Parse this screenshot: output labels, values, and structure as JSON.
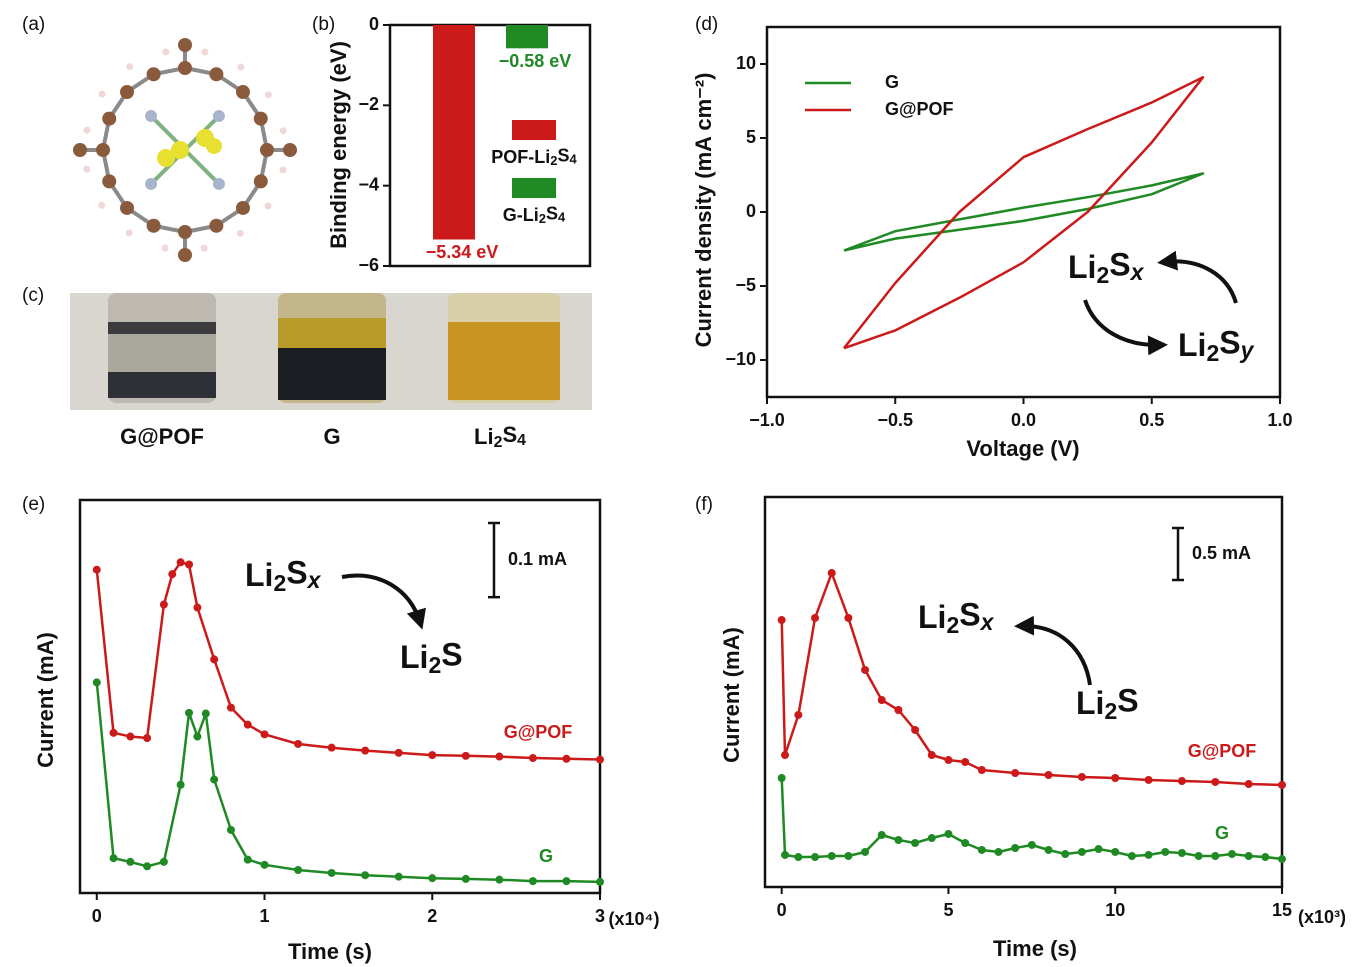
{
  "panel_labels": [
    "(a)",
    "(b)",
    "(c)",
    "(d)",
    "(e)",
    "(f)"
  ],
  "photo_labels": [
    "G@POF",
    "G",
    "Li2S4"
  ],
  "chart_data": [
    {
      "type": "bar",
      "y_label": "Binding energy (eV)",
      "ylim": [
        -6,
        0
      ],
      "yticks": [
        0,
        {
          "value": -2,
          "label": "−2"
        },
        {
          "value": -4,
          "label": "−4"
        },
        {
          "value": -6,
          "label": "−6"
        }
      ],
      "series": [
        {
          "name": "POF-Li2S4",
          "color": "#cc1a1a",
          "values": [
            -5.34
          ],
          "value_labels": [
            "−5.34 eV"
          ]
        },
        {
          "name": "G-Li2S4",
          "color": "#1f8a24",
          "values": [
            -0.58
          ],
          "value_labels": [
            "−0.58 eV"
          ]
        }
      ]
    },
    {
      "type": "line",
      "x_label": "Voltage (V)",
      "y_label": "Current density (mA cm⁻²)",
      "legend": "upper left",
      "xlim": [
        -1,
        1
      ],
      "xticks": [
        {
          "value": -1,
          "label": "−1.0"
        },
        {
          "value": -0.5,
          "label": "−0.5"
        },
        {
          "value": 0,
          "label": "0.0"
        },
        {
          "value": 0.5,
          "label": "0.5"
        },
        {
          "value": 1,
          "label": "1.0"
        }
      ],
      "ylim": [
        -12.5,
        12.5
      ],
      "yticks": [
        {
          "value": -10,
          "label": "−10"
        },
        {
          "value": -5,
          "label": "−5"
        },
        0,
        5,
        10
      ],
      "annotations": [
        "Li2Sx",
        "Li2Sy"
      ],
      "series": [
        {
          "name": "G",
          "color": "#1f8a24",
          "x": [
            -0.7,
            -0.5,
            -0.25,
            0,
            0.25,
            0.5,
            0.7,
            0.5,
            0.25,
            0,
            -0.25,
            -0.5,
            -0.7
          ],
          "values": [
            -2.6,
            -1.8,
            -1.2,
            -0.6,
            0.2,
            1.2,
            2.6,
            1.8,
            1.0,
            0.3,
            -0.5,
            -1.3,
            -2.6
          ]
        },
        {
          "name": "G@POF",
          "color": "#cc1a1a",
          "x": [
            -0.7,
            -0.5,
            -0.25,
            0,
            0.25,
            0.5,
            0.7,
            0.5,
            0.25,
            0,
            -0.25,
            -0.5,
            -0.7
          ],
          "values": [
            -9.2,
            -8.0,
            -5.8,
            -3.4,
            0,
            4.7,
            9.1,
            7.4,
            5.6,
            3.7,
            0,
            -4.8,
            -9.2
          ]
        }
      ]
    },
    {
      "type": "line",
      "x_label": "Time (s)",
      "y_label": "Current (mA)",
      "x_unit_label": "(x10⁴)",
      "markers": true,
      "xlim": [
        -0.1,
        3
      ],
      "xticks": [
        0,
        1,
        2,
        3
      ],
      "ylim": [
        0,
        0.53
      ],
      "scale_bar": 0.1,
      "scale_bar_label": "0.1 mA",
      "annotations": [
        "Li2Sx",
        "Li2S"
      ],
      "series": [
        {
          "name": "G@POF",
          "color": "#cc1a1a",
          "x": [
            0,
            0.1,
            0.2,
            0.3,
            0.4,
            0.45,
            0.5,
            0.55,
            0.6,
            0.7,
            0.8,
            0.9,
            1.0,
            1.2,
            1.4,
            1.6,
            1.8,
            2.0,
            2.2,
            2.4,
            2.6,
            2.8,
            3.0
          ],
          "values": [
            0.436,
            0.216,
            0.211,
            0.209,
            0.389,
            0.43,
            0.446,
            0.443,
            0.385,
            0.315,
            0.25,
            0.227,
            0.214,
            0.201,
            0.196,
            0.192,
            0.189,
            0.186,
            0.185,
            0.184,
            0.182,
            0.181,
            0.18
          ]
        },
        {
          "name": "G",
          "color": "#1f8a24",
          "x": [
            0,
            0.1,
            0.2,
            0.3,
            0.4,
            0.5,
            0.55,
            0.6,
            0.65,
            0.7,
            0.8,
            0.9,
            1.0,
            1.2,
            1.4,
            1.6,
            1.8,
            2.0,
            2.2,
            2.4,
            2.6,
            2.8,
            3.0
          ],
          "values": [
            0.284,
            0.047,
            0.042,
            0.036,
            0.042,
            0.146,
            0.243,
            0.211,
            0.242,
            0.153,
            0.085,
            0.045,
            0.038,
            0.031,
            0.027,
            0.024,
            0.022,
            0.02,
            0.019,
            0.018,
            0.016,
            0.016,
            0.015
          ]
        }
      ]
    },
    {
      "type": "line",
      "x_label": "Time (s)",
      "y_label": "Current (mA)",
      "x_unit_label": "(x10³)",
      "markers": true,
      "xlim": [
        -0.5,
        15
      ],
      "xticks": [
        0,
        5,
        10,
        15
      ],
      "ylim": [
        0,
        3.75
      ],
      "scale_bar": 0.5,
      "scale_bar_label": "0.5 mA",
      "annotations": [
        "Li2Sx",
        "Li2S"
      ],
      "series": [
        {
          "name": "G@POF",
          "color": "#cc1a1a",
          "x": [
            0,
            0.1,
            0.5,
            1.0,
            1.5,
            2.0,
            2.5,
            3,
            3.5,
            4,
            4.5,
            5,
            5.5,
            6,
            7,
            8,
            9,
            10,
            11,
            12,
            13,
            14,
            15
          ],
          "values": [
            2.567,
            1.269,
            1.654,
            2.587,
            3.019,
            2.587,
            2.087,
            1.798,
            1.702,
            1.51,
            1.269,
            1.221,
            1.202,
            1.125,
            1.096,
            1.077,
            1.058,
            1.048,
            1.029,
            1.019,
            1.01,
            0.99,
            0.981
          ]
        },
        {
          "name": "G",
          "color": "#1f8a24",
          "x": [
            0,
            0.1,
            0.5,
            1.0,
            1.5,
            2,
            2.5,
            3,
            3.5,
            4,
            4.5,
            5,
            5.5,
            6,
            6.5,
            7,
            7.5,
            8,
            8.5,
            9,
            9.5,
            10,
            10.5,
            11,
            11.5,
            12,
            12.5,
            13,
            13.5,
            14,
            14.5,
            15
          ],
          "values": [
            1.048,
            0.308,
            0.288,
            0.288,
            0.298,
            0.298,
            0.337,
            0.5,
            0.452,
            0.423,
            0.471,
            0.51,
            0.423,
            0.356,
            0.337,
            0.375,
            0.404,
            0.356,
            0.317,
            0.337,
            0.365,
            0.337,
            0.298,
            0.308,
            0.337,
            0.327,
            0.298,
            0.298,
            0.317,
            0.298,
            0.288,
            0.269
          ]
        }
      ]
    }
  ]
}
